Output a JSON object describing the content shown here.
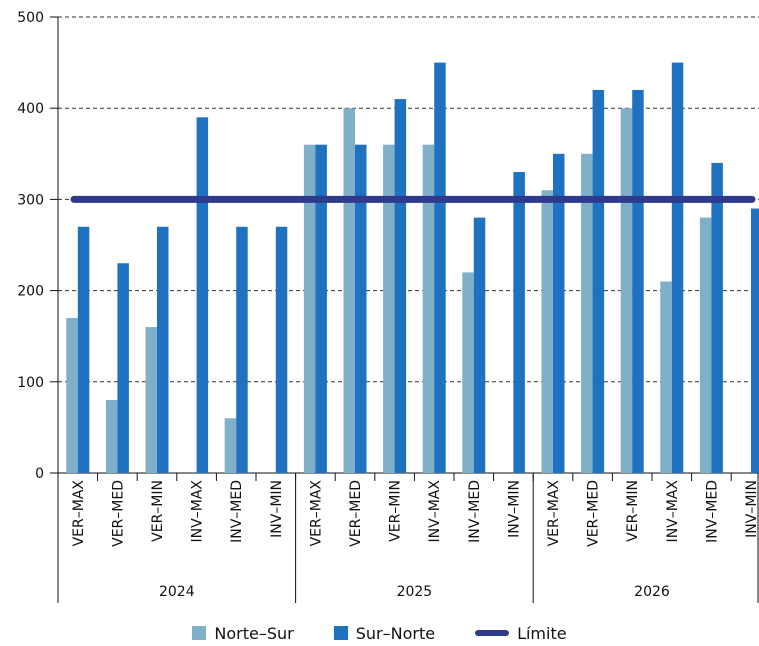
{
  "chart_data": {
    "type": "bar",
    "groups": [
      {
        "label": "2024",
        "categories": [
          "VER–MAX",
          "VER–MED",
          "VER–MIN",
          "INV–MAX",
          "INV–MED",
          "INV–MIN"
        ]
      },
      {
        "label": "2025",
        "categories": [
          "VER–MAX",
          "VER–MED",
          "VER–MIN",
          "INV–MAX",
          "INV–MED",
          "INV–MIN"
        ]
      },
      {
        "label": "2026",
        "categories": [
          "VER–MAX",
          "VER–MED",
          "VER–MIN",
          "INV–MAX",
          "INV–MED",
          "INV–MIN"
        ]
      }
    ],
    "series": [
      {
        "name": "Norte–Sur",
        "color": "#7FAFC9",
        "values": [
          170,
          80,
          160,
          0,
          60,
          0,
          360,
          400,
          360,
          360,
          220,
          0,
          310,
          350,
          400,
          210,
          280,
          0
        ]
      },
      {
        "name": "Sur–Norte",
        "color": "#1F72BF",
        "values": [
          270,
          230,
          270,
          390,
          270,
          270,
          360,
          360,
          410,
          450,
          280,
          330,
          350,
          420,
          420,
          450,
          340,
          290
        ]
      }
    ],
    "reference_line": {
      "name": "Límite",
      "value": 300,
      "color": "#2E3A8C"
    },
    "ylim": [
      0,
      500
    ],
    "yticks": [
      0,
      100,
      200,
      300,
      400,
      500
    ],
    "grid": "dashed horizontal",
    "legend_position": "bottom",
    "title": "",
    "xlabel": "",
    "ylabel": ""
  }
}
